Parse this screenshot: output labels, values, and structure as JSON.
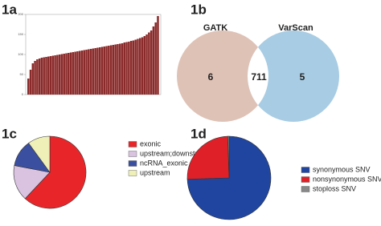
{
  "chart_data": [
    {
      "type": "bar",
      "label": "1a",
      "color": "#8b2a2a",
      "values": [
        40,
        62,
        78,
        84,
        88,
        90,
        92,
        93,
        94,
        95,
        96,
        97,
        98,
        99,
        100,
        101,
        102,
        103,
        104,
        105,
        106,
        107,
        108,
        109,
        110,
        111,
        112,
        113,
        114,
        115,
        116,
        117,
        118,
        119,
        120,
        121,
        122,
        123,
        124,
        125,
        126,
        127,
        128,
        130,
        131,
        132,
        134,
        135,
        137,
        139,
        141,
        143,
        146,
        150,
        155,
        160,
        170,
        180,
        196
      ],
      "ylim": [
        0,
        200
      ],
      "yticks": [
        0,
        50,
        100,
        150,
        200
      ]
    },
    {
      "type": "venn",
      "label": "1b",
      "sets": [
        {
          "name": "GATK",
          "only": 6,
          "color": "#dfc2b6"
        },
        {
          "name": "VarScan",
          "only": 5,
          "color": "#a8cce3"
        }
      ],
      "intersection": 711
    },
    {
      "type": "pie",
      "label": "1c",
      "categories": [
        "exonic",
        "upstream;downstream",
        "ncRNA_exonic",
        "upstream"
      ],
      "values": [
        62,
        16,
        12,
        10
      ],
      "colors": [
        "#e8262a",
        "#d9c3e0",
        "#3a4fa0",
        "#eef0b8"
      ]
    },
    {
      "type": "pie",
      "label": "1d",
      "categories": [
        "synonymous SNV",
        "nonsynonymous SNV",
        "stoploss SNV"
      ],
      "values": [
        74.5,
        25,
        0.5
      ],
      "colors": [
        "#1f45a0",
        "#e02028",
        "#888888"
      ]
    }
  ]
}
